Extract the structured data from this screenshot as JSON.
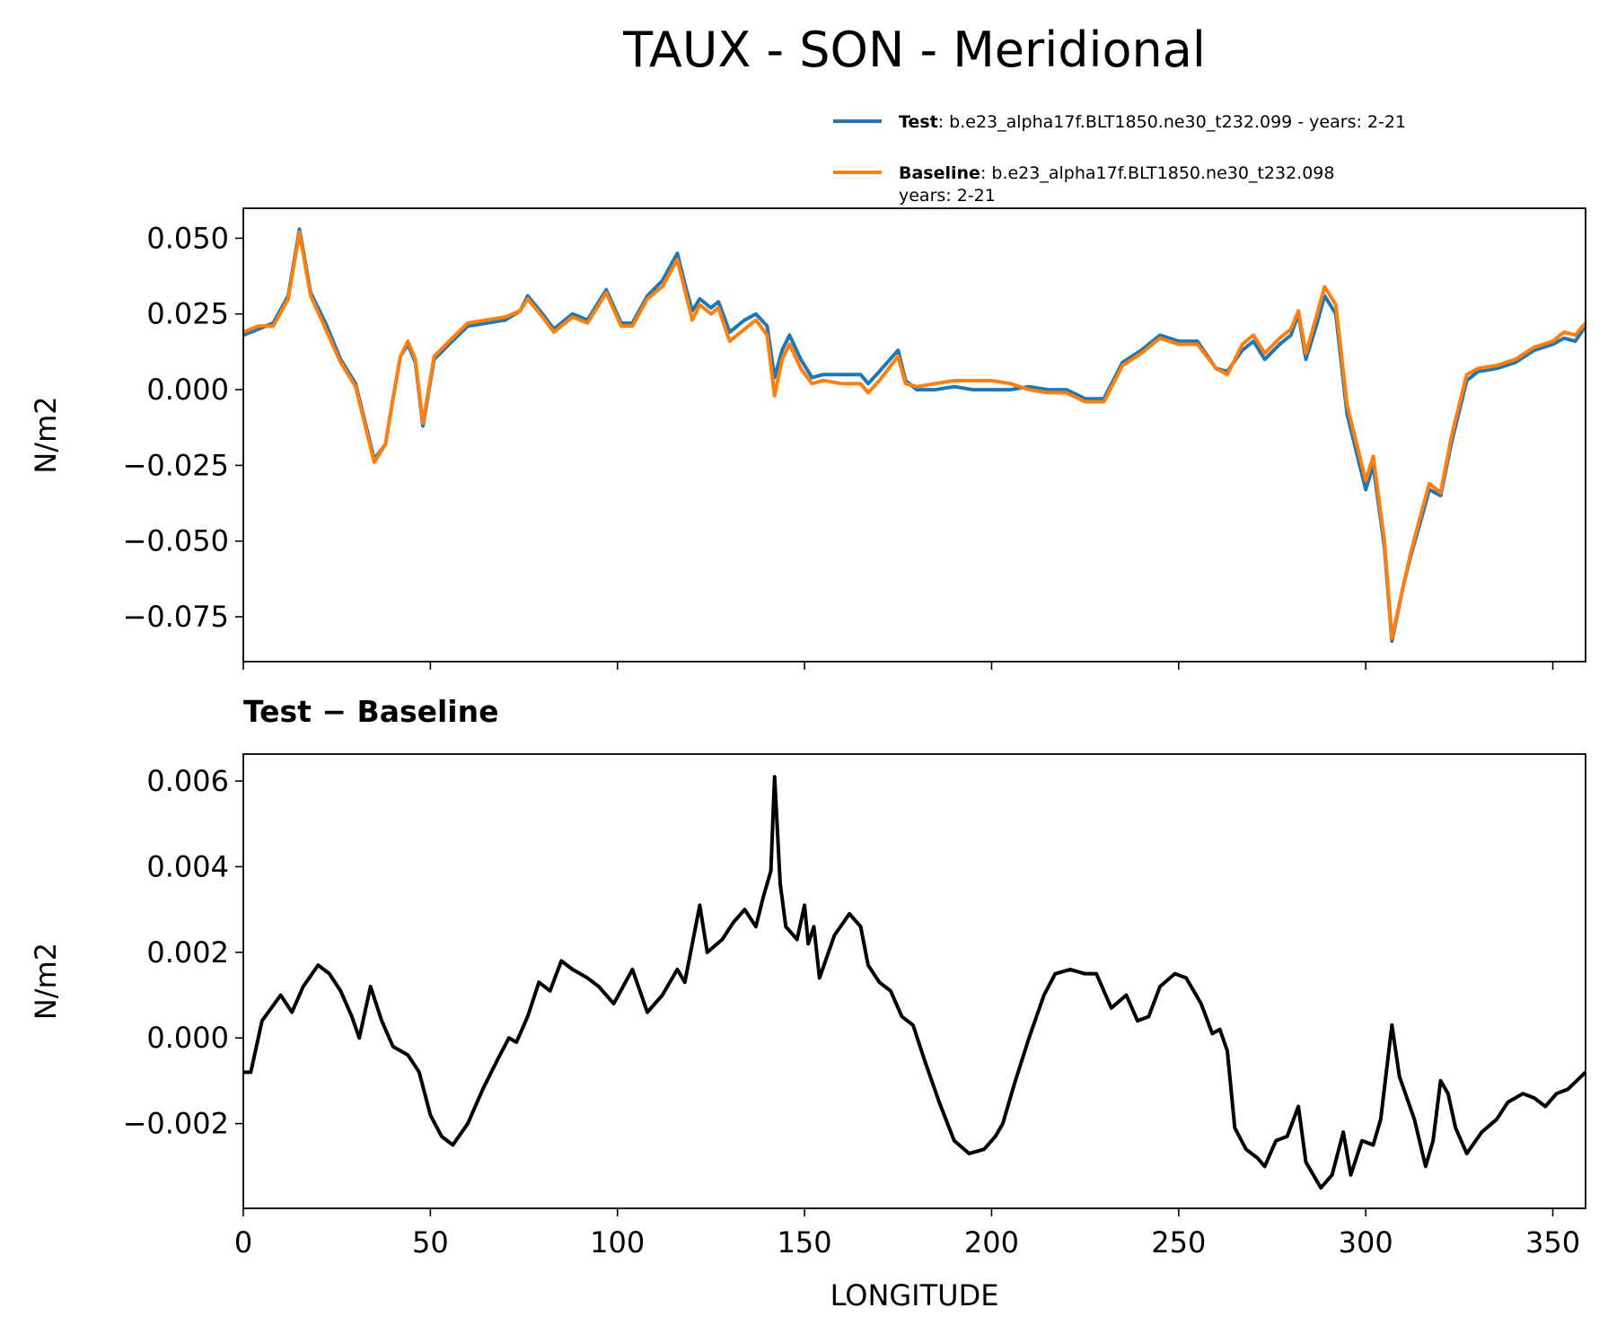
{
  "chart_data": [
    {
      "type": "line",
      "title": "TAUX - SON - Meridional",
      "ylabel": "N/m2",
      "x": [
        0,
        4,
        8,
        12,
        15,
        18,
        22,
        26,
        30,
        33,
        35,
        38,
        40,
        42,
        44,
        46,
        48,
        51,
        55,
        60,
        65,
        70,
        74,
        76,
        80,
        83,
        88,
        92,
        97,
        101,
        104,
        108,
        112,
        116,
        118,
        120,
        122,
        125,
        127,
        130,
        134,
        137,
        140,
        142,
        144,
        146,
        149,
        152,
        155,
        160,
        165,
        167,
        170,
        175,
        177,
        180,
        185,
        190,
        195,
        200,
        205,
        210,
        215,
        220,
        225,
        230,
        235,
        240,
        245,
        250,
        255,
        260,
        263,
        267,
        270,
        273,
        277,
        280,
        282,
        284,
        287,
        289,
        292,
        295,
        298,
        300,
        302,
        305,
        307,
        310,
        312,
        315,
        317,
        320,
        323,
        327,
        330,
        335,
        340,
        345,
        350,
        353,
        356,
        358.75
      ],
      "series": [
        {
          "name": "Test",
          "label": ": b.e23_alpha17f.BLT1850.ne30_t232.099 - years: 2-21",
          "color": "#1f77b4",
          "values": [
            0.018,
            0.02,
            0.022,
            0.031,
            0.053,
            0.032,
            0.022,
            0.01,
            0.002,
            -0.013,
            -0.023,
            -0.018,
            -0.003,
            0.011,
            0.015,
            0.009,
            -0.012,
            0.01,
            0.015,
            0.021,
            0.022,
            0.023,
            0.026,
            0.031,
            0.025,
            0.02,
            0.025,
            0.023,
            0.033,
            0.022,
            0.022,
            0.031,
            0.036,
            0.045,
            0.035,
            0.026,
            0.03,
            0.027,
            0.029,
            0.019,
            0.023,
            0.025,
            0.021,
            0.004,
            0.013,
            0.018,
            0.01,
            0.004,
            0.005,
            0.005,
            0.005,
            0.002,
            0.006,
            0.013,
            0.003,
            0.0,
            0.0,
            0.001,
            0.0,
            0.0,
            0.0,
            0.001,
            0.0,
            0.0,
            -0.003,
            -0.003,
            0.009,
            0.013,
            0.018,
            0.016,
            0.016,
            0.007,
            0.006,
            0.013,
            0.016,
            0.01,
            0.015,
            0.018,
            0.025,
            0.01,
            0.022,
            0.031,
            0.025,
            -0.008,
            -0.023,
            -0.033,
            -0.025,
            -0.052,
            -0.083,
            -0.065,
            -0.055,
            -0.042,
            -0.033,
            -0.035,
            -0.017,
            0.003,
            0.006,
            0.007,
            0.009,
            0.013,
            0.015,
            0.017,
            0.016,
            0.021
          ]
        },
        {
          "name": "Baseline",
          "label_lines": [
            ": b.e23_alpha17f.BLT1850.ne30_t232.098",
            "years: 2-21"
          ],
          "color": "#ff7f0e",
          "values": [
            0.019,
            0.021,
            0.021,
            0.03,
            0.052,
            0.031,
            0.02,
            0.009,
            0.001,
            -0.014,
            -0.024,
            -0.018,
            -0.003,
            0.011,
            0.016,
            0.01,
            -0.011,
            0.011,
            0.016,
            0.022,
            0.023,
            0.024,
            0.026,
            0.03,
            0.024,
            0.019,
            0.024,
            0.022,
            0.032,
            0.021,
            0.021,
            0.03,
            0.034,
            0.043,
            0.033,
            0.023,
            0.028,
            0.025,
            0.027,
            0.016,
            0.02,
            0.023,
            0.018,
            -0.002,
            0.01,
            0.015,
            0.007,
            0.002,
            0.003,
            0.002,
            0.002,
            -0.001,
            0.003,
            0.011,
            0.002,
            0.001,
            0.002,
            0.003,
            0.003,
            0.003,
            0.002,
            0.0,
            -0.001,
            -0.001,
            -0.004,
            -0.004,
            0.008,
            0.012,
            0.017,
            0.015,
            0.015,
            0.007,
            0.005,
            0.015,
            0.018,
            0.012,
            0.017,
            0.02,
            0.026,
            0.012,
            0.025,
            0.034,
            0.028,
            -0.005,
            -0.02,
            -0.03,
            -0.022,
            -0.05,
            -0.082,
            -0.065,
            -0.054,
            -0.04,
            -0.031,
            -0.034,
            -0.015,
            0.005,
            0.007,
            0.008,
            0.01,
            0.014,
            0.016,
            0.019,
            0.018,
            0.022
          ]
        }
      ],
      "xlim": [
        0,
        358.75
      ],
      "ylim": [
        -0.0898,
        0.0599
      ],
      "yticks": [
        {
          "value": -0.075,
          "label": "−0.075"
        },
        {
          "value": -0.05,
          "label": "−0.050"
        },
        {
          "value": -0.025,
          "label": "−0.025"
        },
        {
          "value": 0,
          "label": "0.000"
        },
        {
          "value": 0.025,
          "label": "0.025"
        },
        {
          "value": 0.05,
          "label": "0.050"
        }
      ]
    },
    {
      "type": "line",
      "title": "Test − Baseline",
      "xlabel": "LONGITUDE",
      "ylabel": "N/m2",
      "x": [
        0,
        2,
        5,
        10,
        13,
        16,
        20,
        23,
        26,
        29,
        31,
        34,
        37,
        40,
        44,
        47,
        50,
        53,
        56,
        60,
        64,
        68,
        71,
        73,
        76,
        79,
        82,
        85,
        88,
        92,
        95,
        99,
        104,
        108,
        112,
        116,
        118,
        122,
        124,
        128,
        131,
        134,
        137,
        139,
        141,
        142,
        143.5,
        145,
        148,
        150,
        151,
        152.5,
        154,
        158,
        162,
        165,
        167,
        170,
        173,
        176,
        179,
        182,
        186,
        190,
        194,
        198,
        201,
        203,
        206,
        210,
        214,
        217,
        221,
        225,
        228,
        232,
        236,
        239,
        242,
        245,
        249,
        252,
        256,
        259,
        261,
        263,
        265,
        268,
        271,
        273,
        276,
        279,
        282,
        284,
        288,
        291,
        294,
        296,
        299,
        302,
        304,
        307,
        309,
        313,
        316,
        318,
        320,
        322,
        324,
        327,
        331,
        335,
        338,
        342,
        345,
        348,
        351,
        354,
        358.75
      ],
      "series": [
        {
          "name": "Test − Baseline",
          "color": "#000000",
          "values": [
            -0.0008,
            -0.0008,
            0.0004,
            0.001,
            0.0006,
            0.0012,
            0.0017,
            0.0015,
            0.0011,
            0.0005,
            0.0,
            0.0012,
            0.0004,
            -0.0002,
            -0.0004,
            -0.0008,
            -0.0018,
            -0.0023,
            -0.0025,
            -0.002,
            -0.0012,
            -0.0005,
            0.0,
            -0.0001,
            0.0005,
            0.0013,
            0.0011,
            0.0018,
            0.0016,
            0.0014,
            0.0012,
            0.0008,
            0.0016,
            0.0006,
            0.001,
            0.0016,
            0.0013,
            0.0031,
            0.002,
            0.0023,
            0.0027,
            0.003,
            0.0026,
            0.0033,
            0.0039,
            0.0061,
            0.0036,
            0.0026,
            0.0023,
            0.0031,
            0.0022,
            0.0026,
            0.0014,
            0.0024,
            0.0029,
            0.0026,
            0.0017,
            0.0013,
            0.0011,
            0.0005,
            0.0003,
            -0.0005,
            -0.0015,
            -0.0024,
            -0.0027,
            -0.0026,
            -0.0023,
            -0.002,
            -0.0011,
            0.0,
            0.001,
            0.0015,
            0.0016,
            0.0015,
            0.0015,
            0.0007,
            0.001,
            0.0004,
            0.0005,
            0.0012,
            0.0015,
            0.0014,
            0.0008,
            0.0001,
            0.0002,
            -0.0003,
            -0.0021,
            -0.0026,
            -0.0028,
            -0.003,
            -0.0024,
            -0.0023,
            -0.0016,
            -0.0029,
            -0.0035,
            -0.0032,
            -0.0022,
            -0.0032,
            -0.0024,
            -0.0025,
            -0.0019,
            0.0003,
            -0.0009,
            -0.0019,
            -0.003,
            -0.0024,
            -0.001,
            -0.0013,
            -0.0021,
            -0.0027,
            -0.0022,
            -0.0019,
            -0.0015,
            -0.0013,
            -0.0014,
            -0.0016,
            -0.0013,
            -0.0012,
            -0.0008
          ]
        }
      ],
      "xlim": [
        0,
        358.75
      ],
      "ylim": [
        -0.00398,
        0.00663
      ],
      "xticks": [
        0,
        50,
        100,
        150,
        200,
        250,
        300,
        350
      ],
      "yticks": [
        {
          "value": -0.002,
          "label": "−0.002"
        },
        {
          "value": 0,
          "label": "0.000"
        },
        {
          "value": 0.002,
          "label": "0.002"
        },
        {
          "value": 0.004,
          "label": "0.004"
        },
        {
          "value": 0.006,
          "label": "0.006"
        }
      ]
    }
  ]
}
